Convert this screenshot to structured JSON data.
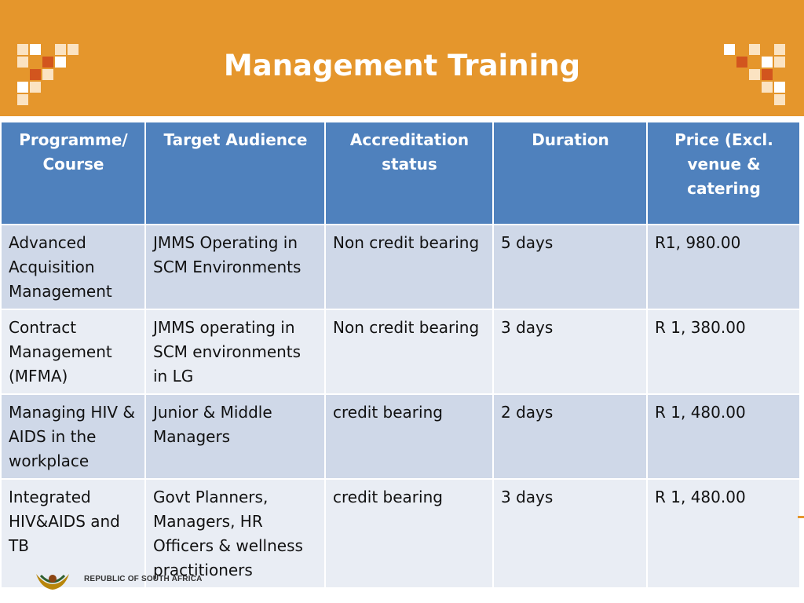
{
  "slide": {
    "title": "Management Training"
  },
  "colors": {
    "header_bg": "#e5962c",
    "table_header_bg": "#4f81bd",
    "row_odd_bg": "#cfd8e8",
    "row_even_bg": "#e9edf4"
  },
  "table": {
    "headers": [
      "Programme/ Course",
      "Target Audience",
      "Accreditation status",
      "Duration",
      "Price (Excl. venue & catering"
    ],
    "rows": [
      [
        "Advanced Acquisition Management",
        "JMMS Operating in SCM Environments",
        "Non credit bearing",
        "5 days",
        "R1, 980.00"
      ],
      [
        "Contract Management (MFMA)",
        "JMMS operating in SCM environments in LG",
        "Non credit bearing",
        "3 days",
        "R 1, 380.00"
      ],
      [
        "Managing HIV & AIDS in the workplace",
        "Junior & Middle Managers",
        "credit bearing",
        "2 days",
        "R 1, 480.00"
      ],
      [
        "Integrated HIV&AIDS and TB",
        "Govt Planners, Managers, HR Officers & wellness practitioners",
        "credit bearing",
        "3 days",
        "R 1, 480.00"
      ]
    ]
  },
  "footer": {
    "country_text": "REPUBLIC OF SOUTH AFRICA",
    "logo_icon": "coat-of-arms-icon"
  }
}
